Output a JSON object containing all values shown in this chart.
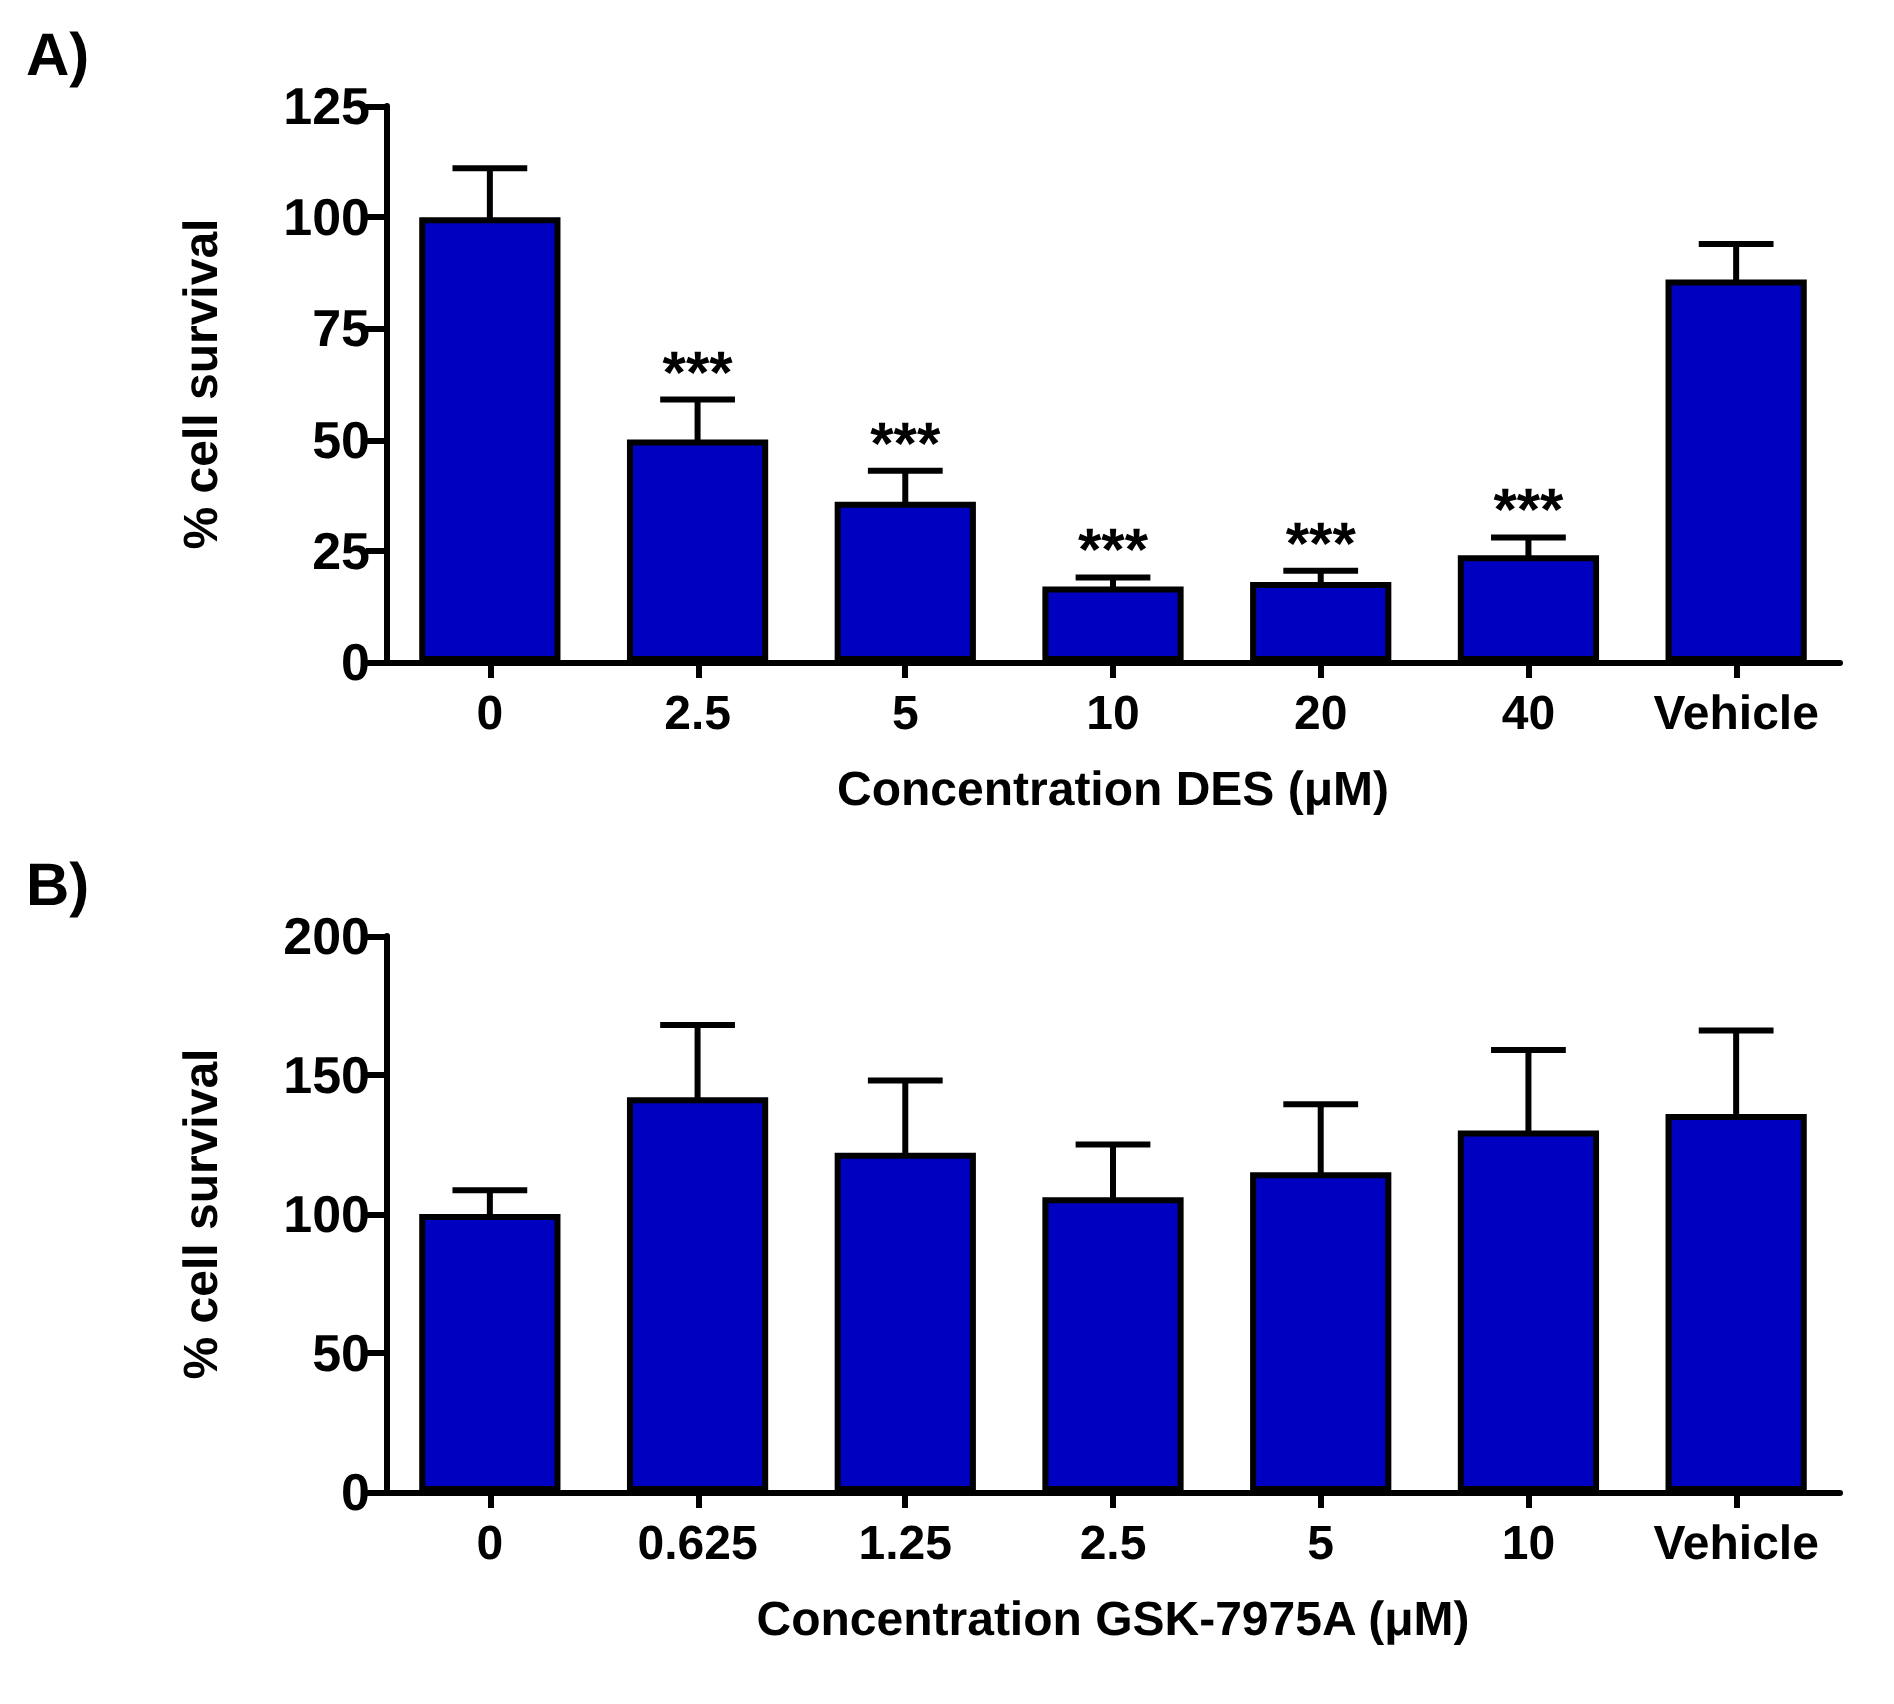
{
  "chart_data": [
    {
      "type": "bar",
      "title": "A)",
      "xlabel": "Concentration DES (μM)",
      "ylabel": "% cell survival",
      "categories": [
        "0",
        "2.5",
        "5",
        "10",
        "20",
        "40",
        "Vehicle"
      ],
      "values": [
        100,
        50,
        36,
        17,
        18,
        24,
        86
      ],
      "errors": [
        11,
        9,
        7,
        2,
        2.5,
        4,
        8
      ],
      "color": "#0000c0",
      "ylim": [
        0,
        125
      ],
      "yticks": [
        0,
        25,
        50,
        75,
        100,
        125
      ],
      "grid": false,
      "annotations": [
        {
          "text": "***",
          "x": "2.5",
          "y": 59
        },
        {
          "text": "***",
          "x": "5",
          "y": 43
        },
        {
          "text": "***",
          "x": "10",
          "y": 19
        },
        {
          "text": "***",
          "x": "20",
          "y": 20.5
        },
        {
          "text": "***",
          "x": "40",
          "y": 28
        }
      ]
    },
    {
      "type": "bar",
      "title": "B)",
      "xlabel": "Concentration GSK-7975A (μM)",
      "ylabel": "% cell survival",
      "categories": [
        "0",
        "0.625",
        "1.25",
        "2.5",
        "5",
        "10",
        "Vehicle"
      ],
      "values": [
        100,
        142,
        122,
        106,
        115,
        130,
        136
      ],
      "errors": [
        8.5,
        26,
        26,
        19,
        24.5,
        29,
        30
      ],
      "color": "#0000c0",
      "ylim": [
        0,
        200
      ],
      "yticks": [
        0,
        50,
        100,
        150,
        200
      ],
      "grid": false
    }
  ]
}
